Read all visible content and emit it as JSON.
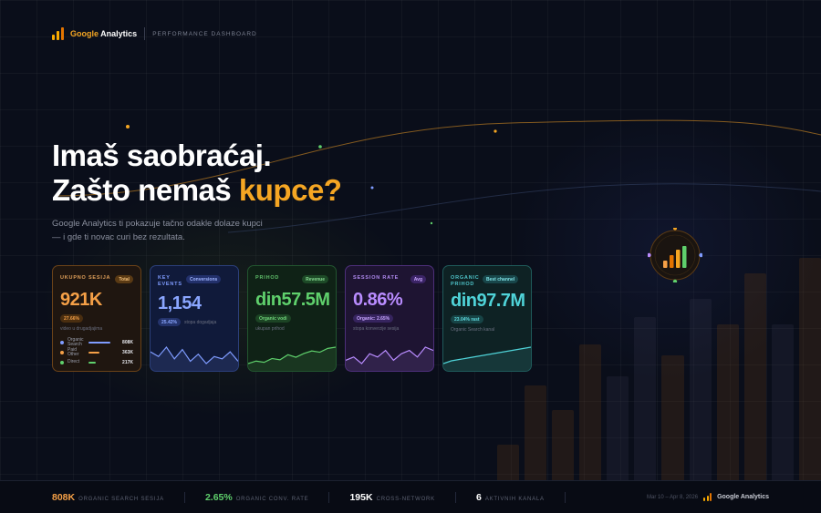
{
  "header": {
    "brand_google": "Google",
    "brand_analytics": " Analytics",
    "subtitle": "PERFORMANCE DASHBOARD"
  },
  "hero": {
    "line1": "Imaš saobraćaj.",
    "line2_prefix": "Zašto nemaš ",
    "line2_accent": "kupce?",
    "description": "Google Analytics ti pokazuje tačno odakle dolaze kupci — i gde ti novac curi bez rezultata."
  },
  "colors": {
    "background": "#0a0e1a",
    "accent_orange": "#f5a623",
    "blue": "#8aa6ff",
    "green": "#5fd06c",
    "purple": "#b98cff",
    "teal": "#4fd3d8"
  },
  "cards": [
    {
      "label": "UKUPNO SESIJA",
      "pill": "Total",
      "value": "921K",
      "badge": "27.66%",
      "note": "video u drugadjajima",
      "channels": [
        {
          "name": "Organic Search",
          "value": "808K",
          "color": "#7f9cff"
        },
        {
          "name": "Paid Other",
          "value": "363K",
          "color": "#f5a047"
        },
        {
          "name": "Direct",
          "value": "217K",
          "color": "#5fd06c"
        }
      ]
    },
    {
      "label": "KEY EVENTS",
      "pill": "Conversions",
      "value": "1,154",
      "badge": "25.42%",
      "badge_note": "stopa dogadjaja",
      "sparkline": [
        20,
        18,
        22,
        17,
        21,
        16,
        19,
        15,
        18,
        17,
        20,
        16
      ]
    },
    {
      "label": "PRIHOD",
      "pill": "Revenue",
      "value": "din57.5M",
      "badge": "Organic vodi",
      "note": "ukupan prihod",
      "sparkline": [
        10,
        12,
        11,
        14,
        13,
        17,
        15,
        18,
        20,
        19,
        22,
        23
      ]
    },
    {
      "label": "SESSION RATE",
      "pill": "Avg",
      "value": "0.86%",
      "badge": "Organic: 2.65%",
      "note": "stopa konverzije sesija",
      "sparkline": [
        14,
        15,
        13,
        16,
        15,
        17,
        14,
        16,
        17,
        15,
        18,
        17
      ]
    },
    {
      "label": "ORGANIC PRIHOD",
      "pill": "Best channel",
      "value": "din97.7M",
      "badge": "23.04% rast",
      "note": "Organic Search kanal",
      "sparkline": [
        8,
        10,
        11,
        12,
        13,
        14,
        15,
        16,
        17,
        18,
        19,
        20
      ]
    }
  ],
  "footer": {
    "stats": [
      {
        "value": "808K",
        "label": "ORGANIC SEARCH SESIJA",
        "color": "#f5a047"
      },
      {
        "value": "2.65%",
        "label": "ORGANIC CONV. RATE",
        "color": "#5fd06c"
      },
      {
        "value": "195K",
        "label": "CROSS-NETWORK",
        "color": "#ffffff"
      },
      {
        "value": "6",
        "label": "AKTIVNIH KANALA",
        "color": "#ffffff"
      }
    ],
    "date_range": "Mar 10 – Apr 8, 2026",
    "brand": "Google Analytics"
  }
}
